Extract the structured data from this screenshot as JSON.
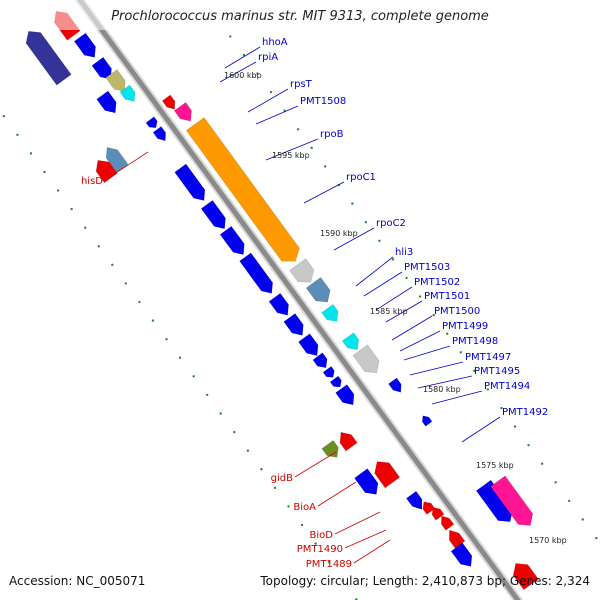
{
  "title": "Prochlorococcus marinus str. MIT 9313, complete genome",
  "accession": "Accession: NC_005071",
  "topology": "Topology: circular; Length: 2,410,873 bp; Genes: 2,324",
  "colors": {
    "backbone": "#8a8a8a",
    "forward_tick": "#2e8b2e",
    "label_forward": "#0000cc",
    "label_reverse": "#cc0000",
    "gene_blue": "#0000ee",
    "gene_red": "#ee0000",
    "gene_orange": "#ff9900",
    "gene_khaki": "#bdb76b",
    "gene_cyan": "#00e5ee",
    "gene_steel": "#5b8db8",
    "gene_gray": "#c8c8c8",
    "gene_olive": "#6b8e23",
    "gene_pink": "#ff1493",
    "gene_navy": "#333399"
  },
  "kbp_markers": [
    "1600 kbp",
    "1595 kbp",
    "1590 kbp",
    "1585 kbp",
    "1580 kbp",
    "1575 kbp",
    "1570 kbp"
  ],
  "forward_labels": [
    "hhoA",
    "rpiA",
    "rpsT",
    "PMT1508",
    "rpoB",
    "rpoC1",
    "rpoC2",
    "hli3",
    "PMT1503",
    "PMT1502",
    "PMT1501",
    "PMT1500",
    "PMT1499",
    "PMT1498",
    "PMT1497",
    "PMT1495",
    "PMT1494",
    "PMT1492"
  ],
  "reverse_labels": [
    "hisD",
    "gidB",
    "BioA",
    "BioD",
    "PMT1490",
    "PMT1489"
  ]
}
